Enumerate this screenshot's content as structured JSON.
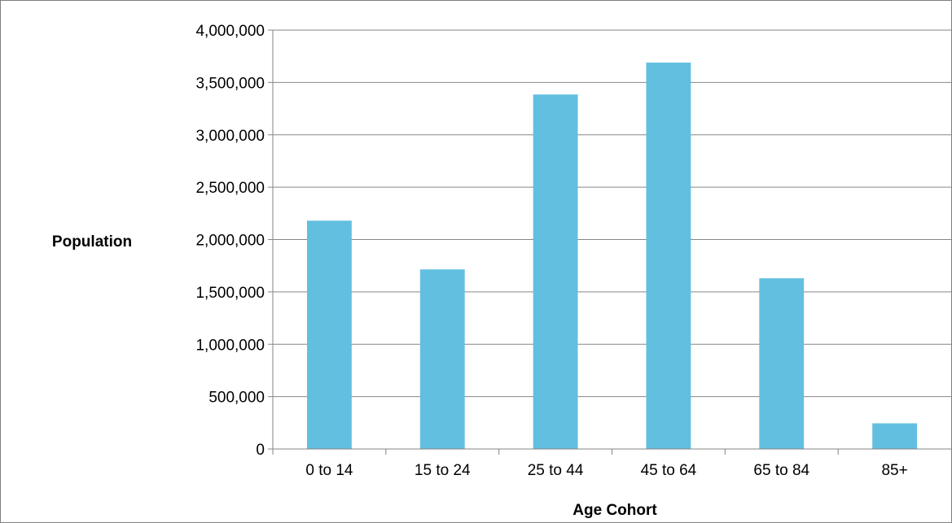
{
  "chart_data": {
    "type": "bar",
    "title": "",
    "xlabel": "Age Cohort",
    "ylabel": "Population",
    "categories": [
      "0 to 14",
      "15 to 24",
      "25 to 44",
      "45 to 64",
      "65 to 84",
      "85+"
    ],
    "values": [
      2180000,
      1715000,
      3385000,
      3690000,
      1630000,
      245000
    ],
    "ylim": [
      0,
      4000000
    ],
    "yticks": [
      0,
      500000,
      1000000,
      1500000,
      2000000,
      2500000,
      3000000,
      3500000,
      4000000
    ],
    "ytick_labels": [
      "0",
      "500,000",
      "1,000,000",
      "1,500,000",
      "2,000,000",
      "2,500,000",
      "3,000,000",
      "3,500,000",
      "4,000,000"
    ],
    "grid": true,
    "legend": "none",
    "colors": {
      "bar": "#62bfe0",
      "gridline": "#868686",
      "axis": "#868686"
    }
  }
}
